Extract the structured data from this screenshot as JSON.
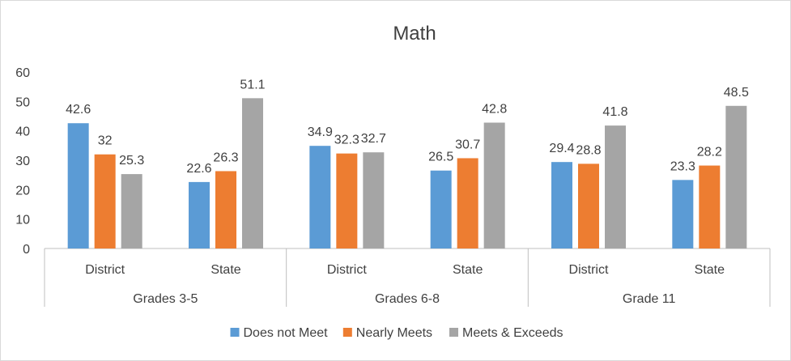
{
  "chart_data": {
    "type": "bar",
    "title": "Math",
    "y_ticks": [
      "0",
      "10",
      "20",
      "30",
      "40",
      "50",
      "60"
    ],
    "ylim": [
      0,
      60
    ],
    "grid": false,
    "legend_position": "bottom",
    "groups": [
      {
        "label": "Grades 3-5",
        "subcategories": [
          "District",
          "State"
        ]
      },
      {
        "label": "Grades 6-8",
        "subcategories": [
          "District",
          "State"
        ]
      },
      {
        "label": "Grade 11",
        "subcategories": [
          "District",
          "State"
        ]
      }
    ],
    "series": [
      {
        "name": "Does not Meet",
        "color": "#5b9bd5",
        "values": [
          42.6,
          22.6,
          34.9,
          26.5,
          29.4,
          23.3
        ],
        "labels": [
          "42.6",
          "22.6",
          "34.9",
          "26.5",
          "29.4",
          "23.3"
        ]
      },
      {
        "name": "Nearly Meets",
        "color": "#ed7d31",
        "values": [
          32,
          26.3,
          32.3,
          30.7,
          28.8,
          28.2
        ],
        "labels": [
          "32",
          "26.3",
          "32.3",
          "30.7",
          "28.8",
          "28.2"
        ]
      },
      {
        "name": "Meets & Exceeds",
        "color": "#a5a5a5",
        "values": [
          25.3,
          51.1,
          32.7,
          42.8,
          41.8,
          48.5
        ],
        "labels": [
          "25.3",
          "51.1",
          "32.7",
          "42.8",
          "41.8",
          "48.5"
        ]
      }
    ]
  }
}
